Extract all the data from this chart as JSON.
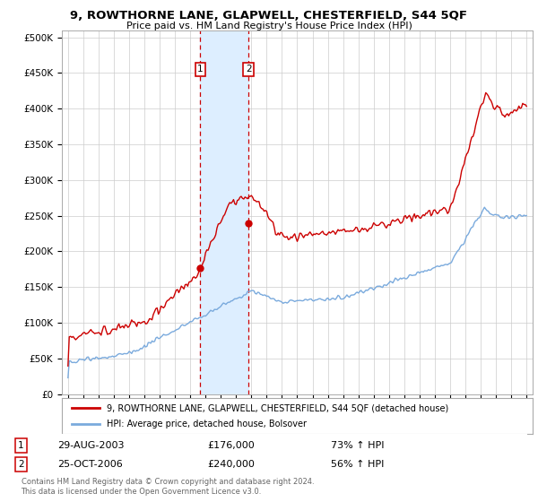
{
  "title": "9, ROWTHORNE LANE, GLAPWELL, CHESTERFIELD, S44 5QF",
  "subtitle": "Price paid vs. HM Land Registry's House Price Index (HPI)",
  "ylabel_ticks": [
    "£0",
    "£50K",
    "£100K",
    "£150K",
    "£200K",
    "£250K",
    "£300K",
    "£350K",
    "£400K",
    "£450K",
    "£500K"
  ],
  "ytick_values": [
    0,
    50000,
    100000,
    150000,
    200000,
    250000,
    300000,
    350000,
    400000,
    450000,
    500000
  ],
  "x_start_year": 1995,
  "x_end_year": 2025,
  "sale1_date": 2003.66,
  "sale1_price": 176000,
  "sale1_label": "1",
  "sale1_display": "29-AUG-2003",
  "sale1_amount": "£176,000",
  "sale1_hpi": "73% ↑ HPI",
  "sale2_date": 2006.81,
  "sale2_price": 240000,
  "sale2_label": "2",
  "sale2_display": "25-OCT-2006",
  "sale2_amount": "£240,000",
  "sale2_hpi": "56% ↑ HPI",
  "red_line_color": "#cc0000",
  "blue_line_color": "#7aaadd",
  "shade_color": "#ddeeff",
  "legend_label_red": "9, ROWTHORNE LANE, GLAPWELL, CHESTERFIELD, S44 5QF (detached house)",
  "legend_label_blue": "HPI: Average price, detached house, Bolsover",
  "footer": "Contains HM Land Registry data © Crown copyright and database right 2024.\nThis data is licensed under the Open Government Licence v3.0.",
  "background_color": "#ffffff"
}
